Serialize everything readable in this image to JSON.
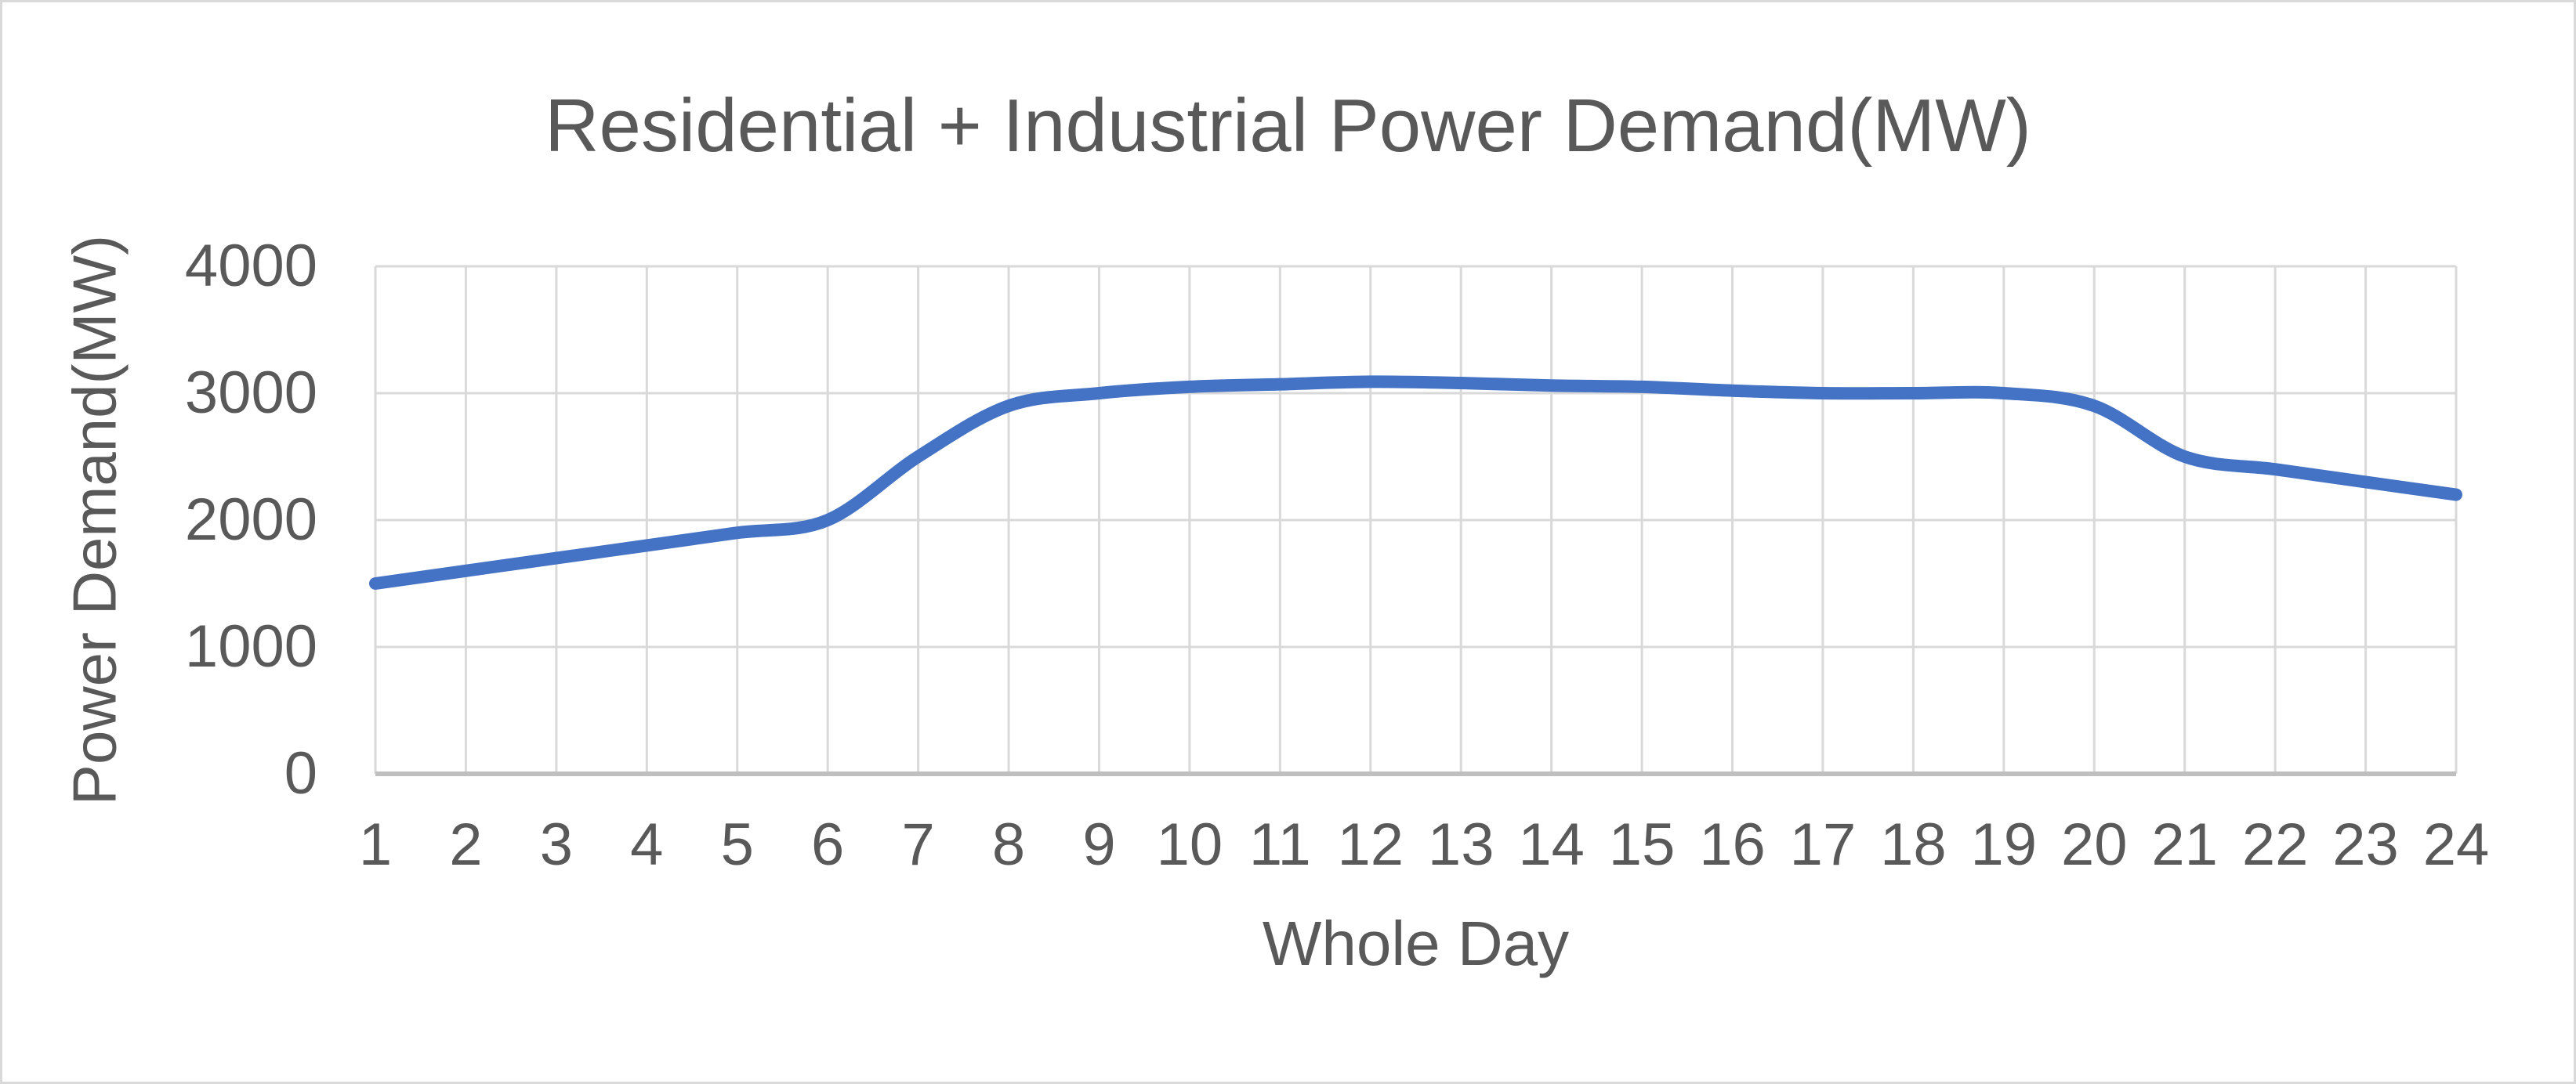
{
  "chart": {
    "title": "Residential + Industrial Power Demand(MW)",
    "y_axis_title": "Power Demand(MW)",
    "x_axis_title": "Whole Day",
    "y_ticks": [
      "4000",
      "3000",
      "2000",
      "1000",
      "0"
    ],
    "x_ticks": [
      "1",
      "2",
      "3",
      "4",
      "5",
      "6",
      "7",
      "8",
      "9",
      "10",
      "11",
      "12",
      "13",
      "14",
      "15",
      "16",
      "17",
      "18",
      "19",
      "20",
      "21",
      "22",
      "23",
      "24"
    ],
    "colors": {
      "line": "#4472C4",
      "gridline": "#D9D9D9",
      "axis_line": "#BFBFBF",
      "text": "#595959",
      "border": "#D9D9D9",
      "background": "#FFFFFF"
    }
  },
  "chart_data": {
    "type": "line",
    "title": "Residential + Industrial Power Demand(MW)",
    "xlabel": "Whole Day",
    "ylabel": "Power Demand(MW)",
    "x": [
      1,
      2,
      3,
      4,
      5,
      6,
      7,
      8,
      9,
      10,
      11,
      12,
      13,
      14,
      15,
      16,
      17,
      18,
      19,
      20,
      21,
      22,
      23,
      24
    ],
    "values": [
      1500,
      1600,
      1700,
      1800,
      1900,
      2000,
      2500,
      2900,
      3000,
      3050,
      3070,
      3090,
      3080,
      3060,
      3050,
      3020,
      3000,
      3000,
      3000,
      2900,
      2500,
      2400,
      2300,
      2200
    ],
    "ylim": [
      0,
      4000
    ],
    "y_gridline_step": 1000,
    "x_gridline_step": 1,
    "grid": true,
    "smooth": true,
    "line_width": 16,
    "legend_position": "none"
  }
}
